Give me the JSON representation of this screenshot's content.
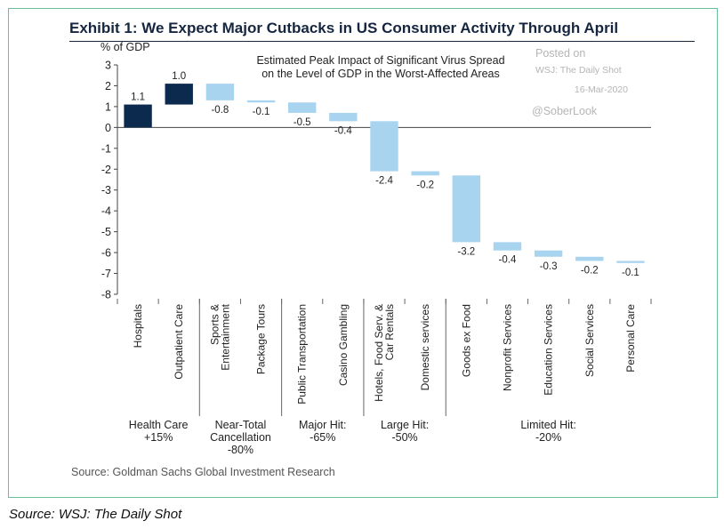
{
  "page": {
    "exhibit_title": "Exhibit 1: We Expect Major Cutbacks in US Consumer Activity Through April",
    "caption": "Source: WSJ: The Daily Shot"
  },
  "chart_data": {
    "type": "bar",
    "subtype": "waterfall",
    "ylabel": "% of GDP",
    "subtitle_lines": [
      "Estimated Peak Impact of Significant Virus Spread",
      "on the Level of GDP in the Worst-Affected Areas"
    ],
    "watermark": {
      "posted": "Posted on",
      "outlet": "WSJ: The Daily Shot",
      "date": "16-Mar-2020",
      "handle": "@SoberLook"
    },
    "ylim": [
      -8,
      3
    ],
    "yticks": [
      3,
      2,
      1,
      0,
      -1,
      -2,
      -3,
      -4,
      -5,
      -6,
      -7,
      -8
    ],
    "categories": [
      [
        "Hospitals"
      ],
      [
        "Outpatient Care"
      ],
      [
        "Sports &",
        "Entertainment"
      ],
      [
        "Package Tours"
      ],
      [
        "Public Transportation"
      ],
      [
        "Casino Gambling"
      ],
      [
        "Hotels, Food Serv. &",
        "Car Rentals"
      ],
      [
        "Domestic services"
      ],
      [
        "Goods ex Food"
      ],
      [
        "Nonprofit Services"
      ],
      [
        "Education Services"
      ],
      [
        "Social Services"
      ],
      [
        "Personal Care"
      ]
    ],
    "values": [
      1.1,
      1.0,
      -0.8,
      -0.1,
      -0.5,
      -0.4,
      -2.4,
      -0.2,
      -3.2,
      -0.4,
      -0.3,
      -0.2,
      -0.1
    ],
    "value_labels": [
      "1.1",
      "1.0",
      "-0.8",
      "-0.1",
      "-0.5",
      "-0.4",
      "-2.4",
      "-0.2",
      "-3.2",
      "-0.4",
      "-0.3",
      "-0.2",
      "-0.1"
    ],
    "positive_color": "#0c2a4d",
    "negative_color": "#a8d4f0",
    "groups": [
      {
        "lines": [
          "Health Care",
          "+15%"
        ],
        "start": 0,
        "end": 1
      },
      {
        "lines": [
          "Near-Total",
          "Cancellation",
          "-80%"
        ],
        "start": 2,
        "end": 3
      },
      {
        "lines": [
          "Major Hit:",
          "-65%"
        ],
        "start": 4,
        "end": 5
      },
      {
        "lines": [
          "Large Hit:",
          "-50%"
        ],
        "start": 6,
        "end": 7
      },
      {
        "lines": [
          "Limited Hit:",
          "-20%"
        ],
        "start": 8,
        "end": 12
      }
    ],
    "source": "Source: Goldman Sachs Global Investment Research"
  }
}
